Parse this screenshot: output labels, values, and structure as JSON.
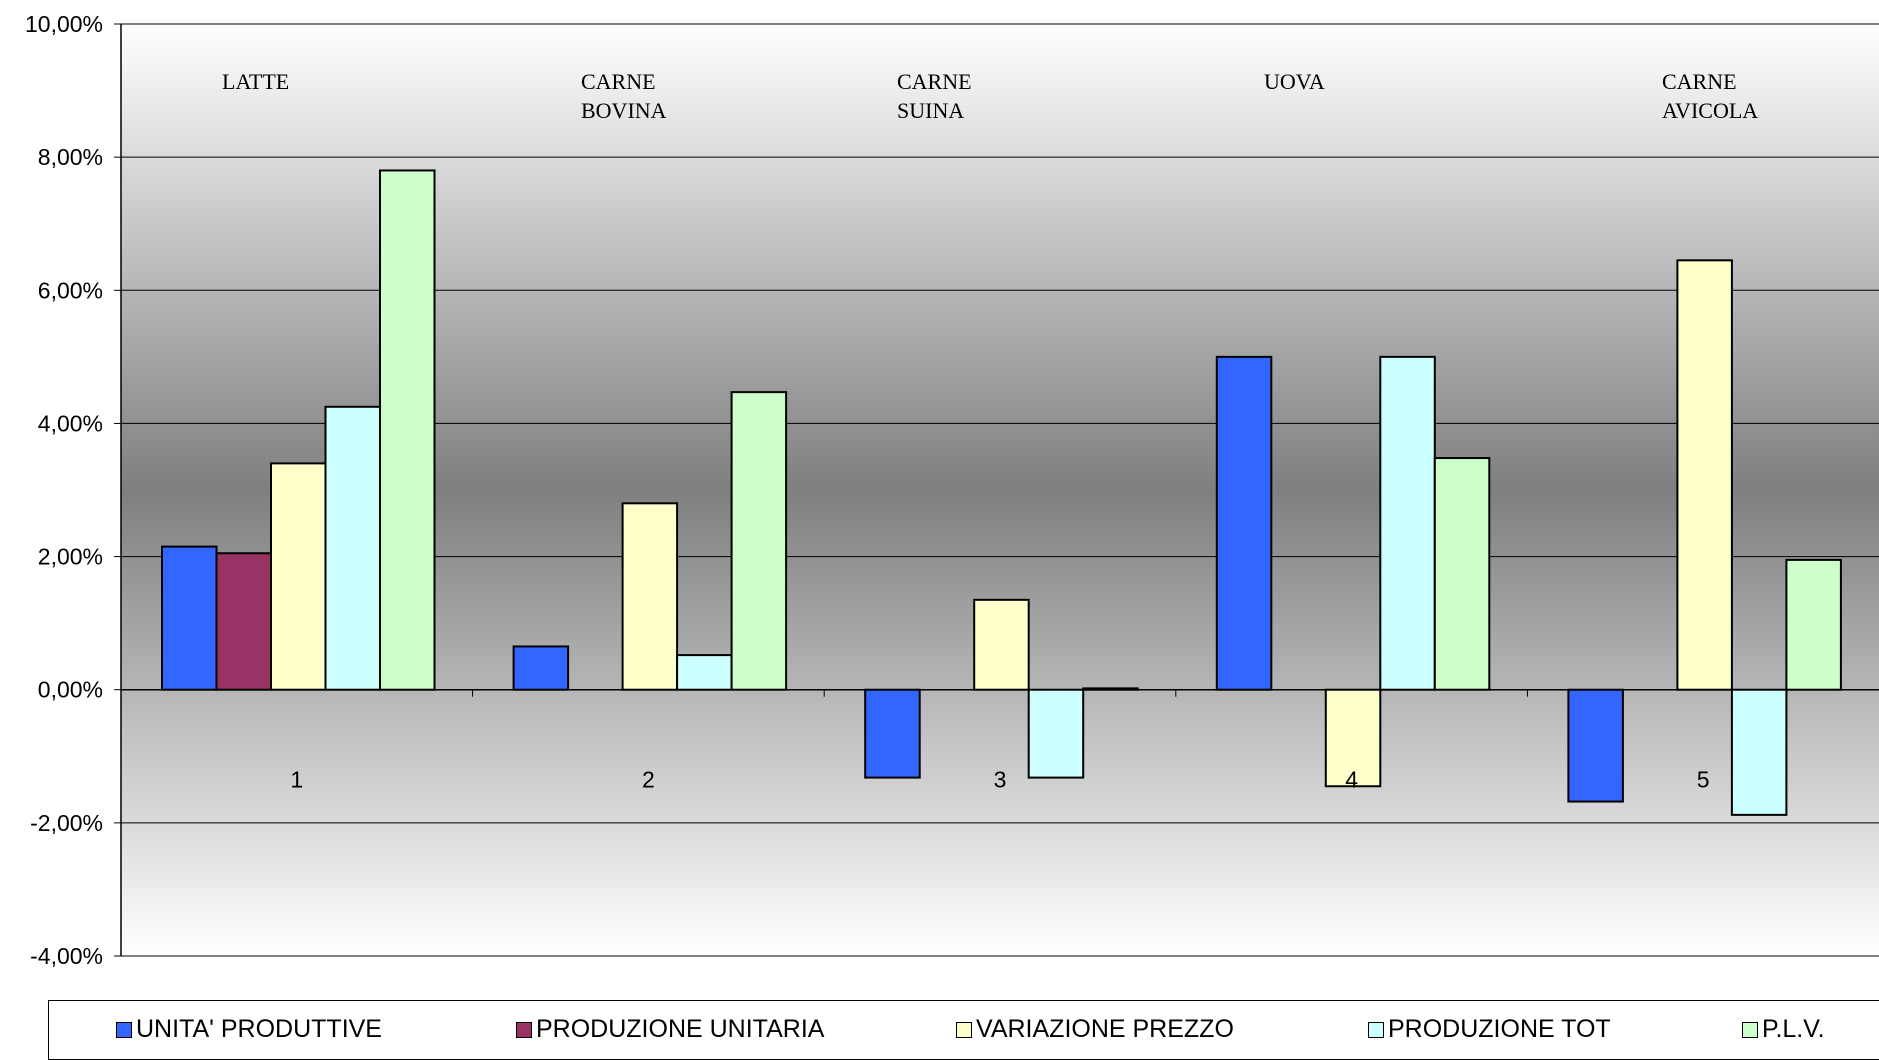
{
  "chart_data": {
    "type": "bar",
    "categories": [
      "1",
      "2",
      "3",
      "4",
      "5"
    ],
    "ylim": [
      -0.04,
      0.1
    ],
    "yticks": [
      "-4,00%",
      "-2,00%",
      "0,00%",
      "2,00%",
      "4,00%",
      "6,00%",
      "8,00%",
      "10,00%"
    ],
    "grid": true,
    "legend_position": "bottom",
    "annotations": [
      {
        "category": "1",
        "lines": [
          "LATTE"
        ]
      },
      {
        "category": "2",
        "lines": [
          "CARNE",
          "BOVINA"
        ]
      },
      {
        "category": "3",
        "lines": [
          "CARNE",
          "SUINA"
        ]
      },
      {
        "category": "4",
        "lines": [
          "UOVA"
        ]
      },
      {
        "category": "5",
        "lines": [
          "CARNE",
          "AVICOLA"
        ]
      }
    ],
    "series": [
      {
        "name": "UNITA' PRODUTTIVE",
        "color": "#3366FF",
        "values": [
          0.0215,
          0.0065,
          -0.0132,
          0.05,
          -0.0168
        ]
      },
      {
        "name": "PRODUZIONE UNITARIA",
        "color": "#993366",
        "values": [
          0.0205,
          0.0,
          0.0,
          0.0,
          0.0
        ]
      },
      {
        "name": "VARIAZIONE PREZZO",
        "color": "#FFFFCC",
        "values": [
          0.034,
          0.028,
          0.0135,
          -0.0145,
          0.0645
        ]
      },
      {
        "name": "PRODUZIONE TOT",
        "color": "#CCFFFF",
        "values": [
          0.0425,
          0.0052,
          -0.0132,
          0.05,
          -0.0188
        ]
      },
      {
        "name": "P.L.V.",
        "color": "#CCFFCC",
        "values": [
          0.078,
          0.0447,
          0.0002,
          0.0348,
          0.0195
        ]
      }
    ]
  }
}
